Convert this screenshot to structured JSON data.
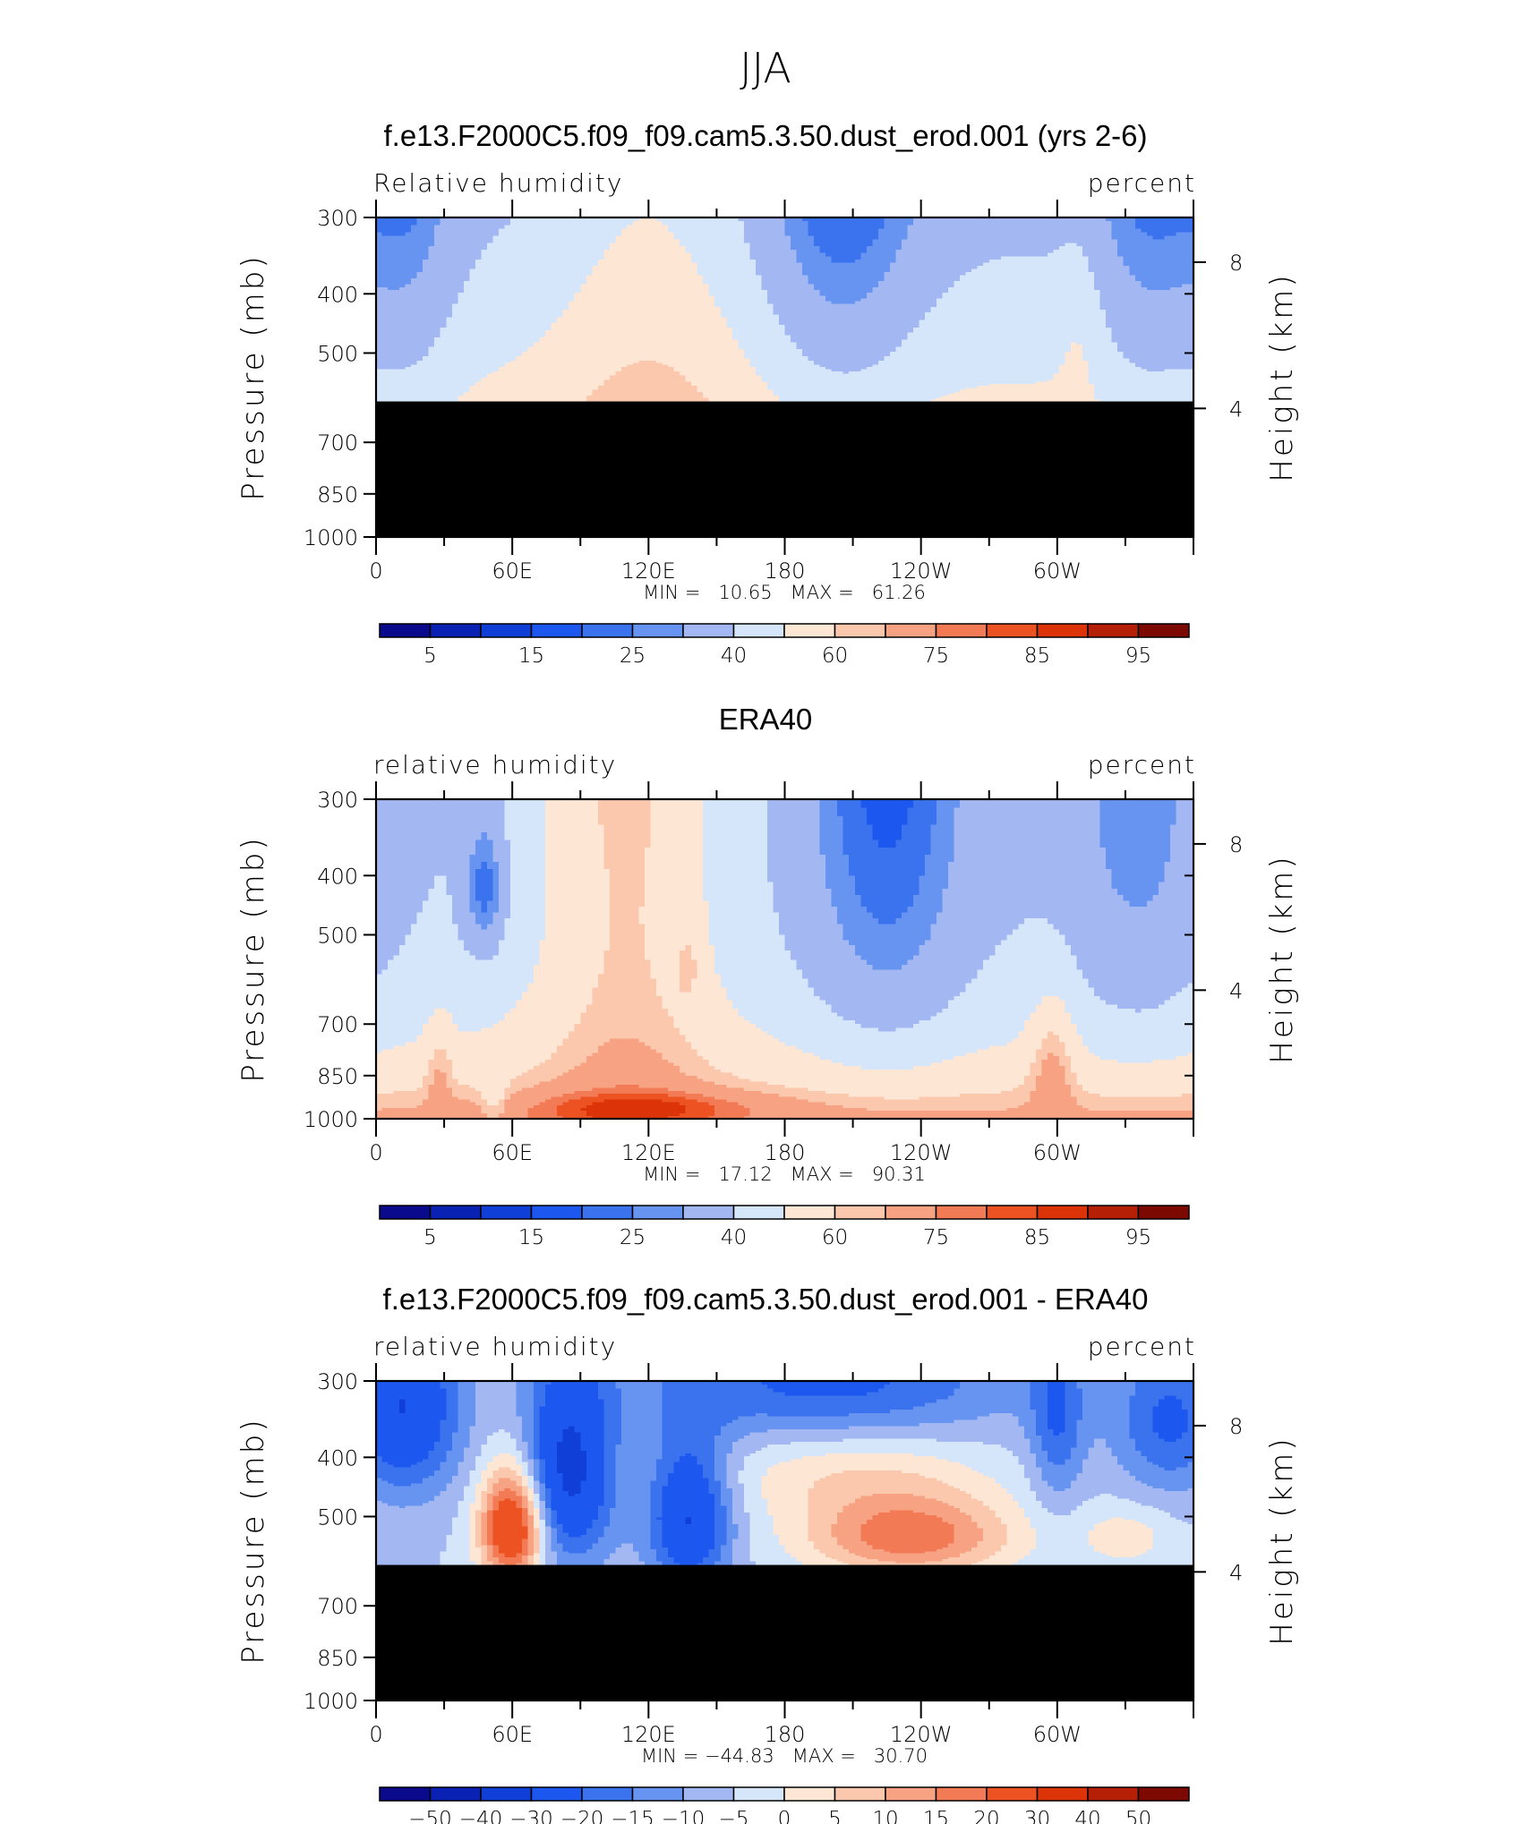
{
  "figure_title": "JJA",
  "colors": {
    "rh_levels": [
      "#0a0a8c",
      "#0a22b4",
      "#0f3fd6",
      "#1c57f0",
      "#3b72ee",
      "#6694f0",
      "#a3b8f2",
      "#d6e6fa",
      "#fde6d4",
      "#fbc7ad",
      "#f7a283",
      "#f27a54",
      "#ec5222",
      "#dc3408",
      "#b41f06",
      "#7d0a02"
    ],
    "missing": "#000000"
  },
  "chart_data": [
    {
      "type": "heatmap",
      "title": "f.e13.F2000C5.f09_f09.cam5.3.50.dust_erod.001 (yrs 2-6)",
      "left_label": "Relative humidity",
      "right_label": "percent",
      "ylabel": "Pressure (mb)",
      "ylabel_right": "Height (km)",
      "x_ticks": [
        "0",
        "60E",
        "120E",
        "180",
        "120W",
        "60W"
      ],
      "y_ticks": [
        "300",
        "400",
        "500",
        "700",
        "850",
        "1000"
      ],
      "y2_ticks": [
        "8",
        "4"
      ],
      "stats": "MIN =   10.65   MAX =   61.26",
      "min": 10.65,
      "max": 61.26,
      "missing_below_mb": 600,
      "colorbar_labels": [
        "5",
        "15",
        "25",
        "40",
        "60",
        "75",
        "85",
        "95"
      ],
      "levels": [
        5,
        10,
        15,
        20,
        25,
        30,
        40,
        50,
        60,
        65,
        75,
        80,
        85,
        90,
        95
      ]
    },
    {
      "type": "heatmap",
      "title": "ERA40",
      "left_label": "relative humidity",
      "right_label": "percent",
      "ylabel": "Pressure (mb)",
      "ylabel_right": "Height (km)",
      "x_ticks": [
        "0",
        "60E",
        "120E",
        "180",
        "120W",
        "60W"
      ],
      "y_ticks": [
        "300",
        "400",
        "500",
        "700",
        "850",
        "1000"
      ],
      "y2_ticks": [
        "8",
        "4"
      ],
      "stats": "MIN =   17.12   MAX =   90.31",
      "min": 17.12,
      "max": 90.31,
      "missing_below_mb": null,
      "colorbar_labels": [
        "5",
        "15",
        "25",
        "40",
        "60",
        "75",
        "85",
        "95"
      ],
      "levels": [
        5,
        10,
        15,
        20,
        25,
        30,
        40,
        50,
        60,
        65,
        75,
        80,
        85,
        90,
        95
      ]
    },
    {
      "type": "heatmap",
      "title": "f.e13.F2000C5.f09_f09.cam5.3.50.dust_erod.001 - ERA40",
      "left_label": "relative humidity",
      "right_label": "percent",
      "ylabel": "Pressure (mb)",
      "ylabel_right": "Height (km)",
      "x_ticks": [
        "0",
        "60E",
        "120E",
        "180",
        "120W",
        "60W"
      ],
      "y_ticks": [
        "300",
        "400",
        "500",
        "700",
        "850",
        "1000"
      ],
      "y2_ticks": [
        "8",
        "4"
      ],
      "stats": "MIN = −44.83   MAX =   30.70",
      "min": -44.83,
      "max": 30.7,
      "missing_below_mb": 600,
      "colorbar_labels": [
        "−50",
        "−40",
        "−30",
        "−20",
        "−15",
        "−10",
        "−5",
        "0",
        "5",
        "10",
        "15",
        "20",
        "30",
        "40",
        "50"
      ],
      "levels": [
        -50,
        -40,
        -30,
        -20,
        -15,
        -10,
        -5,
        0,
        5,
        10,
        15,
        20,
        30,
        40,
        50
      ]
    }
  ]
}
